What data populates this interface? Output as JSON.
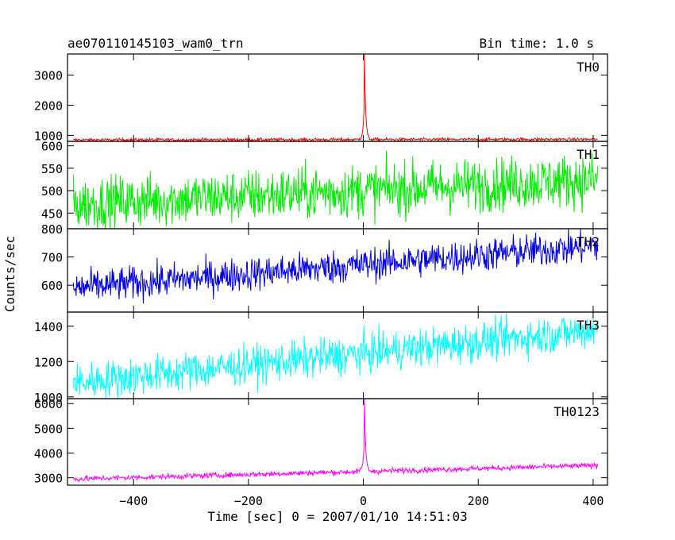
{
  "header": {
    "title": "ae070110145103_wam0_trn",
    "bin_time": "Bin time: 1.0 s"
  },
  "ylabel": "Counts/sec",
  "xlabel": "Time [sec] 0 = 2007/01/10 14:51:03",
  "chart_data": {
    "type": "line",
    "xlim": [
      -515,
      425
    ],
    "x_ticks": [
      -400,
      -200,
      0,
      200,
      400
    ],
    "x_tick_labels": [
      "−400",
      "−200",
      "0",
      "200",
      "400"
    ],
    "time_range": [
      -505,
      408
    ],
    "panels": [
      {
        "name": "TH0",
        "color": "#ff0000",
        "ylim": [
          800,
          3700
        ],
        "y_ticks": [
          1000,
          2000,
          3000
        ],
        "y_tick_labels": [
          "1000",
          "2000",
          "3000"
        ],
        "baseline_start": 850,
        "baseline_end": 870,
        "noise": 25,
        "burst": {
          "peak_time": 2,
          "peak": 3700,
          "width": 2
        }
      },
      {
        "name": "TH1",
        "color": "#00ee00",
        "ylim": [
          415,
          610
        ],
        "y_ticks": [
          450,
          500,
          550,
          600
        ],
        "y_tick_labels": [
          "450",
          "500",
          "550",
          "600"
        ],
        "baseline_start": 470,
        "baseline_end": 525,
        "noise": 30
      },
      {
        "name": "TH2",
        "color": "#0000ee",
        "ylim": [
          505,
          800
        ],
        "y_ticks": [
          600,
          700,
          800
        ],
        "y_tick_labels": [
          "600",
          "700",
          "800"
        ],
        "baseline_start": 590,
        "baseline_end": 740,
        "noise": 30
      },
      {
        "name": "TH3",
        "color": "#00ffff",
        "ylim": [
          990,
          1480
        ],
        "y_ticks": [
          1000,
          1200,
          1400
        ],
        "y_tick_labels": [
          "1000",
          "1200",
          "1400"
        ],
        "baseline_start": 1080,
        "baseline_end": 1380,
        "noise": 55
      },
      {
        "name": "TH0123",
        "color": "#ff00ff",
        "ylim": [
          2700,
          6200
        ],
        "y_ticks": [
          3000,
          4000,
          5000,
          6000
        ],
        "y_tick_labels": [
          "3000",
          "4000",
          "5000",
          "6000"
        ],
        "baseline_start": 2950,
        "baseline_end": 3500,
        "noise": 55,
        "burst": {
          "peak_time": 2,
          "peak": 6150,
          "width": 2
        }
      }
    ]
  }
}
